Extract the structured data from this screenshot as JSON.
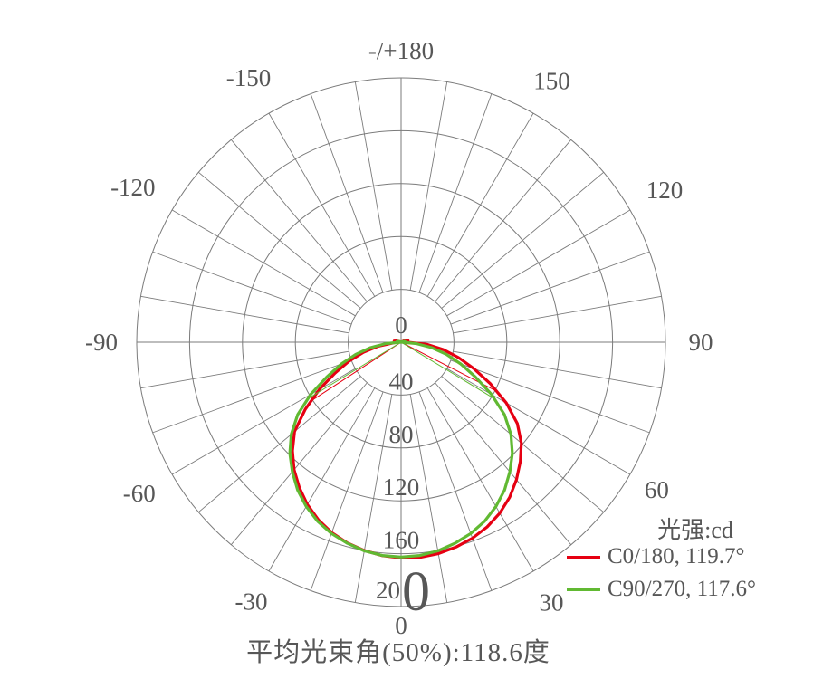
{
  "legend": {
    "title": "光强:cd",
    "items": [
      {
        "label": "C0/180, 119.7°",
        "color": "#e60012"
      },
      {
        "label": "C90/270, 117.6°",
        "color": "#61b932"
      }
    ]
  },
  "caption": "平均光束角(50%):118.6度",
  "chart_data": {
    "type": "polar_intensity",
    "title": "光强:cd",
    "unit": "cd",
    "grid_color": "#7b7b7b",
    "text_color": "#575757",
    "r_max": 200,
    "r_ticks": [
      40,
      80,
      120,
      160,
      200
    ],
    "r_tick_labels": [
      "0",
      "40",
      "80",
      "120",
      "160"
    ],
    "r_200_label": {
      "prefix": "20",
      "big_digit": "0"
    },
    "minor_angle_step": 10,
    "angle_tick_labels": [
      {
        "label": "-/+180",
        "angle": 180,
        "r": 322
      },
      {
        "label": "-150",
        "angle": -150,
        "r": 337
      },
      {
        "label": "150",
        "angle": 150,
        "r": 333
      },
      {
        "label": "-120",
        "angle": -120,
        "r": 342
      },
      {
        "label": "120",
        "angle": 120,
        "r": 336
      },
      {
        "label": "-90",
        "angle": -90,
        "r": 331
      },
      {
        "label": "90",
        "angle": 90,
        "r": 331
      },
      {
        "label": "-60",
        "angle": -60,
        "r": 334
      },
      {
        "label": "60",
        "angle": 60,
        "r": 326
      },
      {
        "label": "-30",
        "angle": -30,
        "r": 331
      },
      {
        "label": "30",
        "angle": 30,
        "r": 332
      },
      {
        "label": "0",
        "angle": 0,
        "r": 313
      }
    ],
    "angles_deg": [
      -120,
      -115,
      -110,
      -105,
      -100,
      -95,
      -90,
      -85,
      -80,
      -75,
      -70,
      -65,
      -60,
      -55,
      -50,
      -45,
      -40,
      -35,
      -30,
      -25,
      -20,
      -15,
      -10,
      -5,
      0,
      5,
      10,
      15,
      20,
      25,
      30,
      35,
      40,
      45,
      50,
      55,
      60,
      65,
      70,
      75,
      80,
      85,
      90,
      95,
      100,
      105,
      110,
      115,
      120
    ],
    "series": [
      {
        "name": "C0/180",
        "legend": "C0/180, 119.7°",
        "color": "#e60012",
        "beam_angle_deg": 119.7,
        "tilt_deg": 3,
        "values": [
          0,
          0.4,
          1.8,
          3.7,
          5.3,
          5.1,
          2.4,
          5.5,
          17.5,
          29.5,
          42,
          55.2,
          71.3,
          88.5,
          105.2,
          116.2,
          125.9,
          134.2,
          141.8,
          148.2,
          153.3,
          157.2,
          160,
          162.1,
          163.2,
          163.4,
          162.4,
          160.5,
          157.8,
          154.2,
          149.3,
          143.2,
          135.8,
          127.6,
          118.7,
          107.4,
          92,
          74.7,
          58.7,
          45,
          32.5,
          20,
          5,
          3,
          4.9,
          5.4,
          4.2,
          2.2,
          0.6
        ]
      },
      {
        "name": "C90/270",
        "legend": "C90/270, 117.6°",
        "color": "#61b932",
        "beam_angle_deg": 117.6,
        "tilt_deg": 0,
        "values": [
          0,
          0.5,
          1.5,
          2.5,
          3,
          2,
          0.5,
          11.5,
          23.5,
          35.5,
          48,
          62,
          79,
          95.5,
          108.5,
          119,
          128,
          136.5,
          143.5,
          149.5,
          154,
          157.5,
          160.3,
          162,
          162.5,
          162,
          160.3,
          157.5,
          154,
          149.5,
          143.5,
          136.5,
          128,
          119,
          108.5,
          95.5,
          79,
          62,
          48,
          35.5,
          23.5,
          11.5,
          0.5,
          2,
          3,
          2.5,
          1.5,
          0.5,
          0
        ]
      }
    ],
    "average_beam_angle_caption": "平均光束角(50%):118.6度"
  }
}
